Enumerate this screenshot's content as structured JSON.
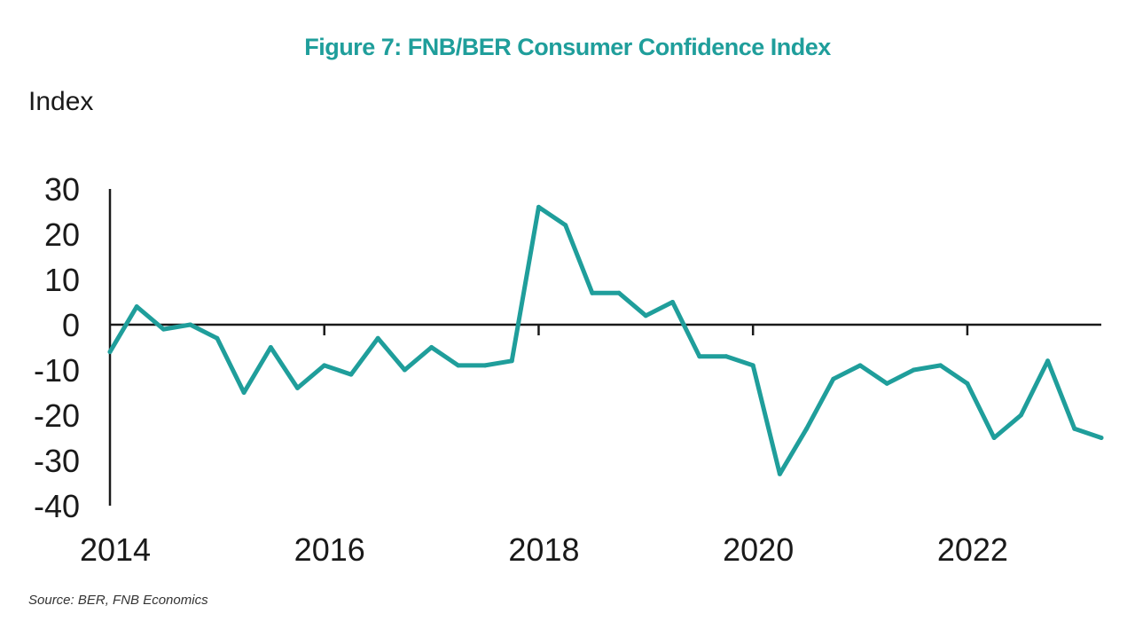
{
  "chart_data": {
    "type": "line",
    "title": "Figure 7: FNB/BER Consumer Confidence Index",
    "ylabel": "Index",
    "xlabel": "",
    "source": "Source: BER, FNB Economics",
    "ylim": [
      -40,
      30
    ],
    "yticks": [
      30,
      20,
      10,
      0,
      -10,
      -20,
      -30,
      -40
    ],
    "xlim": [
      2014.0,
      2023.25
    ],
    "xticks": [
      2014,
      2016,
      2018,
      2020,
      2022
    ],
    "grid": false,
    "legend": "none",
    "colors": {
      "line": "#1f9e9b",
      "title": "#1f9e9b",
      "axis": "#1a1a1a"
    },
    "series": [
      {
        "x": [
          "2014Q1",
          "2014Q2",
          "2014Q3",
          "2014Q4",
          "2015Q1",
          "2015Q2",
          "2015Q3",
          "2015Q4",
          "2016Q1",
          "2016Q2",
          "2016Q3",
          "2016Q4",
          "2017Q1",
          "2017Q2",
          "2017Q3",
          "2017Q4",
          "2018Q1",
          "2018Q2",
          "2018Q3",
          "2018Q4",
          "2019Q1",
          "2019Q2",
          "2019Q3",
          "2019Q4",
          "2020Q1",
          "2020Q2",
          "2020Q3",
          "2020Q4",
          "2021Q1",
          "2021Q2",
          "2021Q3",
          "2021Q4",
          "2022Q1",
          "2022Q2",
          "2022Q3",
          "2022Q4",
          "2023Q1",
          "2023Q2"
        ],
        "values": [
          -6,
          4,
          -1,
          0,
          -3,
          -15,
          -5,
          -14,
          -9,
          -11,
          -3,
          -10,
          -5,
          -9,
          -9,
          -8,
          26,
          22,
          7,
          7,
          2,
          5,
          -7,
          -7,
          -9,
          -33,
          -23,
          -12,
          -9,
          -13,
          -10,
          -9,
          -13,
          -25,
          -20,
          -8,
          -23,
          -25
        ]
      }
    ]
  }
}
